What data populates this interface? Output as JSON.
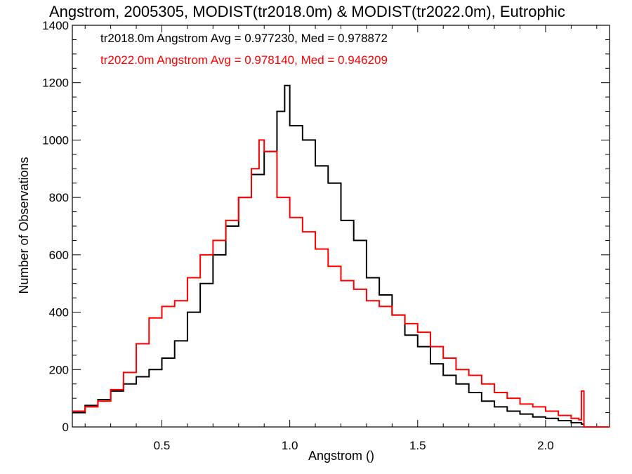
{
  "chart_data": {
    "type": "line",
    "title": "Angstrom, 2005305, MODIST(tr2018.0m) & MODIST(tr2022.0m), Eutrophic",
    "xlabel": "Angstrom ()",
    "ylabel": "Number of Observations",
    "xlim": [
      0.15,
      2.25
    ],
    "ylim": [
      0,
      1400
    ],
    "xticks": [
      "0.5",
      "1.0",
      "1.5",
      "2.0"
    ],
    "yticks": [
      "0",
      "200",
      "400",
      "600",
      "800",
      "1000",
      "1200",
      "1400"
    ],
    "grid": false,
    "legend_position": "top-left",
    "annotations": [
      {
        "text": "tr2018.0m Angstrom Avg = 0.977230, Med = 0.978872",
        "color": "#000000"
      },
      {
        "text": "tr2022.0m Angstrom Avg = 0.978140, Med = 0.946209",
        "color": "#ff0000"
      }
    ],
    "series": [
      {
        "color": "#000000",
        "x": [
          0.15,
          0.2,
          0.25,
          0.3,
          0.35,
          0.4,
          0.45,
          0.5,
          0.55,
          0.6,
          0.65,
          0.7,
          0.75,
          0.8,
          0.85,
          0.9,
          0.95,
          0.98,
          1.0,
          1.05,
          1.1,
          1.15,
          1.2,
          1.25,
          1.3,
          1.35,
          1.4,
          1.45,
          1.5,
          1.55,
          1.6,
          1.65,
          1.7,
          1.75,
          1.8,
          1.85,
          1.9,
          1.95,
          2.0,
          2.05,
          2.1,
          2.14,
          2.15,
          2.2,
          2.25
        ],
        "y": [
          50,
          75,
          95,
          125,
          150,
          175,
          200,
          240,
          300,
          400,
          500,
          600,
          700,
          800,
          880,
          960,
          1100,
          1190,
          1050,
          1000,
          910,
          850,
          720,
          650,
          520,
          460,
          390,
          320,
          280,
          220,
          180,
          150,
          120,
          90,
          70,
          55,
          45,
          35,
          30,
          22,
          15,
          10,
          0,
          0,
          0
        ]
      },
      {
        "color": "#ff0000",
        "x": [
          0.15,
          0.2,
          0.25,
          0.3,
          0.35,
          0.4,
          0.45,
          0.5,
          0.55,
          0.6,
          0.65,
          0.7,
          0.75,
          0.8,
          0.85,
          0.88,
          0.9,
          0.95,
          1.0,
          1.05,
          1.1,
          1.15,
          1.2,
          1.25,
          1.3,
          1.35,
          1.4,
          1.45,
          1.5,
          1.55,
          1.6,
          1.65,
          1.7,
          1.75,
          1.8,
          1.85,
          1.9,
          1.95,
          2.0,
          2.05,
          2.1,
          2.13,
          2.14,
          2.15,
          2.2,
          2.25
        ],
        "y": [
          55,
          70,
          90,
          130,
          190,
          290,
          380,
          420,
          440,
          520,
          600,
          650,
          720,
          800,
          900,
          1000,
          960,
          800,
          730,
          680,
          620,
          560,
          510,
          480,
          440,
          420,
          390,
          360,
          330,
          280,
          240,
          200,
          180,
          150,
          120,
          100,
          80,
          70,
          55,
          40,
          30,
          25,
          125,
          0,
          0,
          0
        ]
      }
    ]
  }
}
